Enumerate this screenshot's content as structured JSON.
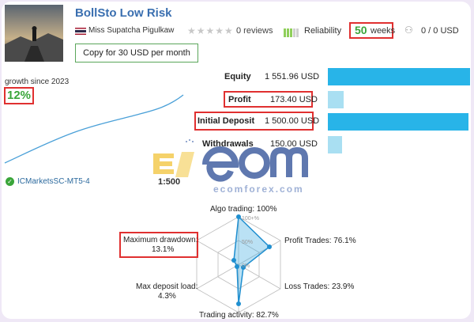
{
  "signal": {
    "title": "BollSto Low Risk",
    "author": "Miss Supatcha Pigulkaw",
    "reviews": "0 reviews",
    "reliability_label": "Reliability",
    "weeks_value": "50",
    "weeks_label": "weeks",
    "subscribers": "0 / 0 USD",
    "copy_button": "Copy for 30 USD per month"
  },
  "growth": {
    "label": "growth since 2023",
    "value": "12%",
    "broker": "ICMarketsSC-MT5-4",
    "leverage": "1:500"
  },
  "stats": [
    {
      "label": "Equity",
      "value": "1 551.96 USD"
    },
    {
      "label": "Profit",
      "value": "173.40 USD"
    },
    {
      "label": "Initial Deposit",
      "value": "1 500.00 USD"
    },
    {
      "label": "Withdrawals",
      "value": "150.00 USD"
    }
  ],
  "watermark": {
    "text": "ecomforex.com"
  },
  "radar": {
    "algo": "Algo trading: 100%",
    "profit": "Profit Trades: 76.1%",
    "loss": "Loss Trades: 23.9%",
    "activity": "Trading activity: 82.7%",
    "deposit_load_1": "Max deposit load:",
    "deposit_load_2": "4.3%",
    "drawdown_1": "Maximum drawdown:",
    "drawdown_2": "13.1%",
    "ticks": [
      "100+%",
      "50%",
      "0%"
    ]
  },
  "colors": {
    "accent": "#28b4e8",
    "positive": "#3aa53a",
    "highlight": "#e03030",
    "title": "#3a6fb0"
  }
}
